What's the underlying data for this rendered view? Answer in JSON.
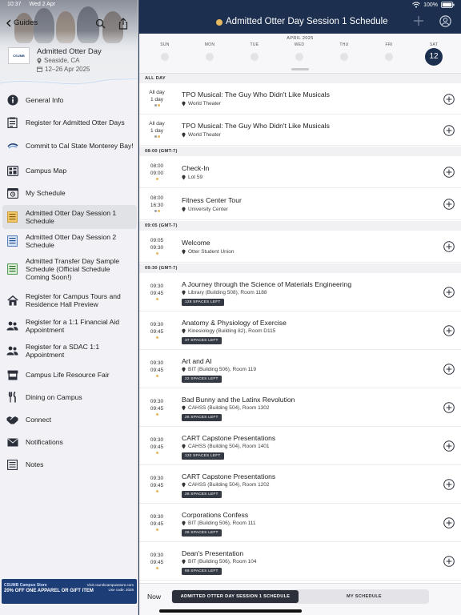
{
  "status": {
    "time": "10:37",
    "date": "Wed 2 Apr",
    "battery": "100%"
  },
  "nav": {
    "back_label": "Guides"
  },
  "event": {
    "logo_text": "CSUMB",
    "title": "Admitted Otter Day",
    "location": "Seaside, CA",
    "dates": "12–26 Apr 2025"
  },
  "menu": [
    {
      "label": "General Info",
      "icon": "info-icon"
    },
    {
      "label": "Register for Admitted Otter Days",
      "icon": "register-icon"
    },
    {
      "label": "Commit to Cal State Monterey Bay!",
      "icon": "csumb-logo-icon"
    },
    {
      "label": "Campus Map",
      "icon": "map-icon"
    },
    {
      "label": "My Schedule",
      "icon": "my-schedule-icon"
    },
    {
      "label": "Admitted Otter Day Session 1 Schedule",
      "icon": "schedule-list-icon",
      "active": true
    },
    {
      "label": "Admitted Otter Day Session 2 Schedule",
      "icon": "schedule-list-icon"
    },
    {
      "label": "Admitted Transfer Day Sample Schedule (Official Schedule Coming Soon!)",
      "icon": "schedule-list-icon"
    },
    {
      "label": "Register for Campus Tours and Residence Hall Preview",
      "icon": "house-icon"
    },
    {
      "label": "Register for a 1:1 Financial Aid Appointment",
      "icon": "people-icon"
    },
    {
      "label": "Register for a SDAC 1:1 Appointment",
      "icon": "people-icon"
    },
    {
      "label": "Campus Life Resource Fair",
      "icon": "booth-icon"
    },
    {
      "label": "Dining on Campus",
      "icon": "dining-icon"
    },
    {
      "label": "Connect",
      "icon": "handshake-icon"
    },
    {
      "label": "Notifications",
      "icon": "envelope-icon"
    },
    {
      "label": "Notes",
      "icon": "notes-icon"
    }
  ],
  "banner": {
    "top": "CSUMB Campus Store",
    "main": "20% OFF ONE APPAREL OR GIFT ITEM",
    "right_1": "Visit csumbcampusstore.com",
    "right_2": "Use code: 2025"
  },
  "header": {
    "title": "Admitted Otter Day Session 1 Schedule",
    "accent": "#e6b860",
    "bar_color": "#1c2f4f"
  },
  "calendar": {
    "month": "APRIL 2025",
    "days": [
      {
        "name": "SUN"
      },
      {
        "name": "MON"
      },
      {
        "name": "TUE"
      },
      {
        "name": "WED"
      },
      {
        "name": "THU"
      },
      {
        "name": "FRI"
      },
      {
        "name": "SAT",
        "date": "12",
        "selected": true
      }
    ]
  },
  "sections": [
    {
      "header": "ALL DAY",
      "events": [
        {
          "time1": "All day",
          "time2": "1 day",
          "dots": [
            "#9aa0a6",
            "#e6b860"
          ],
          "title": "TPO Musical: The Guy Who Didn't Like Musicals",
          "location": "World Theater"
        },
        {
          "time1": "All day",
          "time2": "1 day",
          "dots": [
            "#9aa0a6",
            "#e6b860"
          ],
          "title": "TPO Musical: The Guy Who Didn't Like Musicals",
          "location": "World Theater"
        }
      ]
    },
    {
      "header": "08:00 (GMT-7)",
      "events": [
        {
          "time1": "08:00",
          "time2": "09:00",
          "dots": [
            "#e6b860"
          ],
          "title": "Check-In",
          "location": "Lot 59"
        },
        {
          "time1": "08:00",
          "time2": "16:30",
          "dots": [
            "#9aa0a6",
            "#e6b860"
          ],
          "title": "Fitness Center Tour",
          "location": "University Center"
        }
      ]
    },
    {
      "header": "09:05 (GMT-7)",
      "events": [
        {
          "time1": "09:05",
          "time2": "09:30",
          "dots": [
            "#e6b860"
          ],
          "title": "Welcome",
          "location": "Otter Student Union"
        }
      ]
    },
    {
      "header": "09:30 (GMT-7)",
      "events": [
        {
          "time1": "09:30",
          "time2": "09:45",
          "dots": [
            "#e6b860"
          ],
          "title": "A Journey through the Science of Materials Engineering",
          "location": "Library (Building 508), Room 1188",
          "badge": "128 SPACES LEFT"
        },
        {
          "time1": "09:30",
          "time2": "09:45",
          "dots": [
            "#e6b860"
          ],
          "title": "Anatomy & Physiology of Exercise",
          "location": "Kinesiology (Building  82), Room D115",
          "badge": "37 SPACES LEFT"
        },
        {
          "time1": "09:30",
          "time2": "09:45",
          "dots": [
            "#e6b860"
          ],
          "title": "Art and AI",
          "location": "BIT (Building 506), Room 119",
          "badge": "22 SPACES LEFT"
        },
        {
          "time1": "09:30",
          "time2": "09:45",
          "dots": [
            "#e6b860"
          ],
          "title": "Bad Bunny and the Latinx Revolution",
          "location": "CAHSS (Building 504), Room 1302",
          "badge": "26 SPACES LEFT"
        },
        {
          "time1": "09:30",
          "time2": "09:45",
          "dots": [
            "#e6b860"
          ],
          "title": "CART Capstone Presentations",
          "location": "CAHSS (Building 504), Room 1401",
          "badge": "132 SPACES LEFT"
        },
        {
          "time1": "09:30",
          "time2": "09:45",
          "dots": [
            "#e6b860"
          ],
          "title": "CART Capstone Presentations",
          "location": "CAHSS (Building 504), Room 1202",
          "badge": "26 SPACES LEFT"
        },
        {
          "time1": "09:30",
          "time2": "09:45",
          "dots": [
            "#e6b860"
          ],
          "title": "Corporations Confess",
          "location": "BIT (Building 506), Room 111",
          "badge": "26 SPACES LEFT"
        },
        {
          "time1": "09:30",
          "time2": "09:45",
          "dots": [
            "#e6b860"
          ],
          "title": "Dean's Presentation",
          "location": "BIT (Building 506), Room 104",
          "badge": "69 SPACES LEFT"
        }
      ]
    }
  ],
  "bottom": {
    "now_label": "Now",
    "tabs": [
      {
        "label": "ADMITTED OTTER DAY SESSION 1 SCHEDULE",
        "selected": true
      },
      {
        "label": "MY SCHEDULE",
        "selected": false
      }
    ]
  }
}
